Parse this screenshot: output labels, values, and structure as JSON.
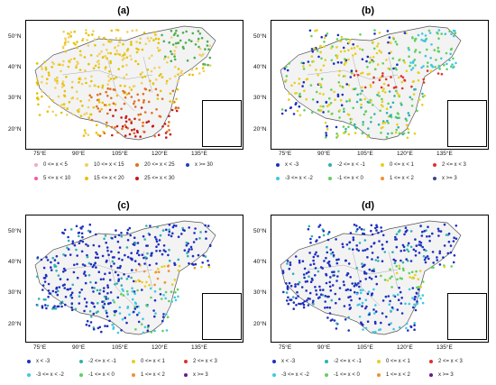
{
  "figure": {
    "lon_ticks": [
      "75°E",
      "90°E",
      "105°E",
      "120°E",
      "135°E"
    ],
    "lat_ticks": [
      "50°N",
      "40°N",
      "30°N",
      "20°N"
    ],
    "panels": [
      {
        "label": "(a)"
      },
      {
        "label": "(b)"
      },
      {
        "label": "(c)"
      },
      {
        "label": "(d)"
      }
    ],
    "legend_a": [
      {
        "label": "0 <= x < 5",
        "color": "#f2a8c9"
      },
      {
        "label": "5 <= x < 10",
        "color": "#f25bb0"
      },
      {
        "label": "10 <= x < 15",
        "color": "#f0d060"
      },
      {
        "label": "15 <= x < 20",
        "color": "#e6c200"
      },
      {
        "label": "20 <= x < 25",
        "color": "#e07020"
      },
      {
        "label": "25 <= x < 30",
        "color": "#c81818"
      },
      {
        "label": "x >= 30",
        "color": "#1f3fbf"
      }
    ],
    "legend_b": [
      {
        "label": "x < -3",
        "color": "#1f2fc0"
      },
      {
        "label": "-3 <= x < -2",
        "color": "#40c8e0"
      },
      {
        "label": "-2 <= x < -1",
        "color": "#30b0b0"
      },
      {
        "label": "-1 <= x < 0",
        "color": "#60d060"
      },
      {
        "label": "0 <= x < 1",
        "color": "#e8d020"
      },
      {
        "label": "1 <= x < 2",
        "color": "#f09030"
      },
      {
        "label": "2 <= x < 3",
        "color": "#e03030"
      },
      {
        "label": "x >= 3",
        "color": "#404090"
      }
    ],
    "legend_c": [
      {
        "label": "x < -3",
        "color": "#1f2fc0"
      },
      {
        "label": "-3 <= x < -2",
        "color": "#40c8e0"
      },
      {
        "label": "-2 <= x < -1",
        "color": "#30b0b0"
      },
      {
        "label": "-1 <= x < 0",
        "color": "#60d060"
      },
      {
        "label": "0 <= x < 1",
        "color": "#e8d020"
      },
      {
        "label": "1 <= x < 2",
        "color": "#f09030"
      },
      {
        "label": "2 <= x < 3",
        "color": "#e03030"
      },
      {
        "label": "x >= 3",
        "color": "#6a1a8a"
      }
    ],
    "legend_d": [
      {
        "label": "x < -3",
        "color": "#1f2fc0"
      },
      {
        "label": "-3 <= x < -2",
        "color": "#40c8e0"
      },
      {
        "label": "-2 <= x < -1",
        "color": "#30b0b0"
      },
      {
        "label": "-1 <= x < 0",
        "color": "#60d060"
      },
      {
        "label": "0 <= x < 1",
        "color": "#e8d020"
      },
      {
        "label": "1 <= x < 2",
        "color": "#f09030"
      },
      {
        "label": "2 <= x < 3",
        "color": "#e03030"
      },
      {
        "label": "x >= 3",
        "color": "#6a1a8a"
      }
    ]
  }
}
